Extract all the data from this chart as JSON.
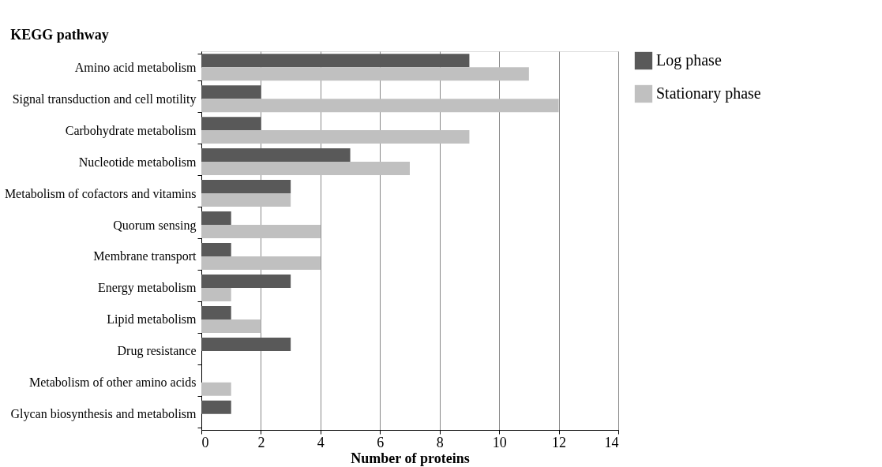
{
  "chart_data": {
    "type": "bar",
    "orientation": "horizontal",
    "ylabel": "KEGG pathway",
    "xlabel": "Number of proteins",
    "categories": [
      "Amino acid metabolism",
      "Signal transduction and cell motility",
      "Carbohydrate metabolism",
      "Nucleotide metabolism",
      "Metabolism of cofactors and vitamins",
      "Quorum sensing ",
      "Membrane transport",
      "Energy metabolism",
      "Lipid metabolism",
      "Drug resistance",
      "Metabolism of other amino acids",
      "Glycan biosynthesis and metabolism"
    ],
    "series": [
      {
        "name": "Log phase",
        "color": "#595959",
        "values": [
          9,
          2,
          2,
          5,
          3,
          1,
          1,
          3,
          1,
          3,
          0,
          1
        ]
      },
      {
        "name": "Stationary phase",
        "color": "#c0c0c0",
        "values": [
          11,
          12,
          9,
          7,
          3,
          4,
          4,
          1,
          2,
          0,
          1,
          0
        ]
      }
    ],
    "xlim": [
      0,
      14
    ],
    "xticks": [
      0,
      2,
      4,
      6,
      8,
      10,
      12,
      14
    ],
    "grid": "x",
    "legend": "top right"
  }
}
